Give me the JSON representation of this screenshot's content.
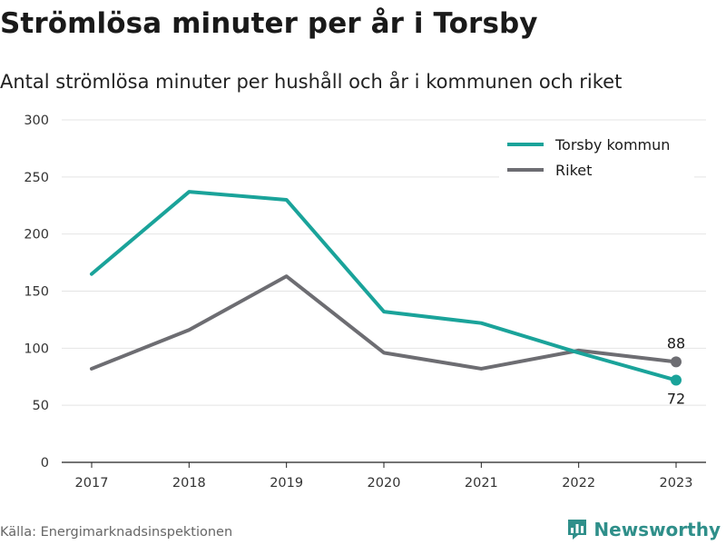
{
  "header": {
    "title": "Strömlösa minuter per år i Torsby",
    "subtitle": "Antal strömlösa minuter per hushåll och år i kommunen och riket"
  },
  "footer": {
    "source": "Källa: Energimarknadsinspektionen",
    "brand": "Newsworthy",
    "brand_icon": "newsworthy-logo-icon"
  },
  "chart_data": {
    "type": "line",
    "x": [
      "2017",
      "2018",
      "2019",
      "2020",
      "2021",
      "2022",
      "2023"
    ],
    "ylim": [
      0,
      300
    ],
    "yticks": [
      0,
      50,
      100,
      150,
      200,
      250,
      300
    ],
    "grid": true,
    "legend_position": "top-right",
    "series": [
      {
        "name": "Torsby kommun",
        "color": "#1aa39a",
        "values": [
          165,
          237,
          230,
          132,
          122,
          96,
          72
        ],
        "end_label": "72"
      },
      {
        "name": "Riket",
        "color": "#6d6d72",
        "values": [
          82,
          116,
          163,
          96,
          82,
          98,
          88
        ],
        "end_label": "88"
      }
    ]
  }
}
